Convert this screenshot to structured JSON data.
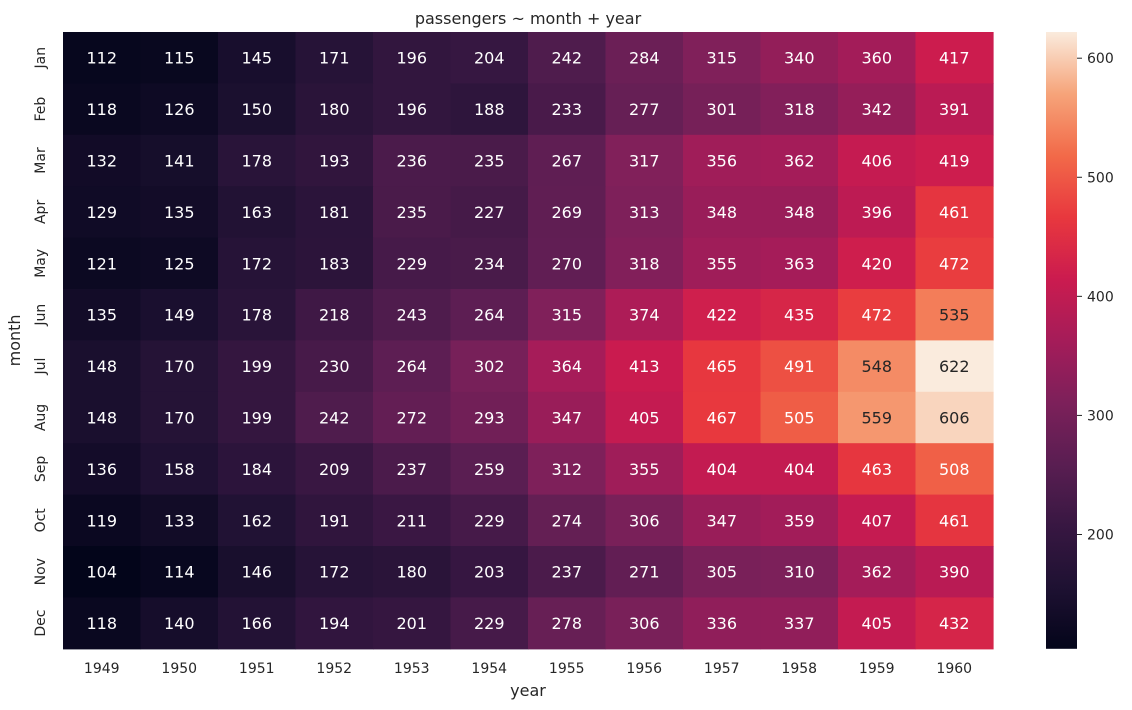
{
  "chart_data": {
    "type": "heatmap",
    "title": "passengers ~ month + year",
    "xlabel": "year",
    "ylabel": "month",
    "x_categories": [
      "1949",
      "1950",
      "1951",
      "1952",
      "1953",
      "1954",
      "1955",
      "1956",
      "1957",
      "1958",
      "1959",
      "1960"
    ],
    "y_categories": [
      "Jan",
      "Feb",
      "Mar",
      "Apr",
      "May",
      "Jun",
      "Jul",
      "Aug",
      "Sep",
      "Oct",
      "Nov",
      "Dec"
    ],
    "values": [
      [
        112,
        115,
        145,
        171,
        196,
        204,
        242,
        284,
        315,
        340,
        360,
        417
      ],
      [
        118,
        126,
        150,
        180,
        196,
        188,
        233,
        277,
        301,
        318,
        342,
        391
      ],
      [
        132,
        141,
        178,
        193,
        236,
        235,
        267,
        317,
        356,
        362,
        406,
        419
      ],
      [
        129,
        135,
        163,
        181,
        235,
        227,
        269,
        313,
        348,
        348,
        396,
        461
      ],
      [
        121,
        125,
        172,
        183,
        229,
        234,
        270,
        318,
        355,
        363,
        420,
        472
      ],
      [
        135,
        149,
        178,
        218,
        243,
        264,
        315,
        374,
        422,
        435,
        472,
        535
      ],
      [
        148,
        170,
        199,
        230,
        264,
        302,
        364,
        413,
        465,
        491,
        548,
        622
      ],
      [
        148,
        170,
        199,
        242,
        272,
        293,
        347,
        405,
        467,
        505,
        559,
        606
      ],
      [
        136,
        158,
        184,
        209,
        237,
        259,
        312,
        355,
        404,
        404,
        463,
        508
      ],
      [
        119,
        133,
        162,
        191,
        211,
        229,
        274,
        306,
        347,
        359,
        407,
        461
      ],
      [
        104,
        114,
        146,
        172,
        180,
        203,
        237,
        271,
        305,
        310,
        362,
        390
      ],
      [
        118,
        140,
        166,
        194,
        201,
        229,
        278,
        306,
        336,
        337,
        405,
        432
      ]
    ],
    "colorscale": "rocket",
    "vmin": 104,
    "vmax": 622,
    "colorbar_ticks": [
      200,
      300,
      400,
      500,
      600
    ],
    "colorbar_tick_labels": [
      "200",
      "300",
      "400",
      "500",
      "600"
    ],
    "annotation_colors": {
      "on_dark": "#ffffff",
      "on_light": "#262626"
    }
  }
}
